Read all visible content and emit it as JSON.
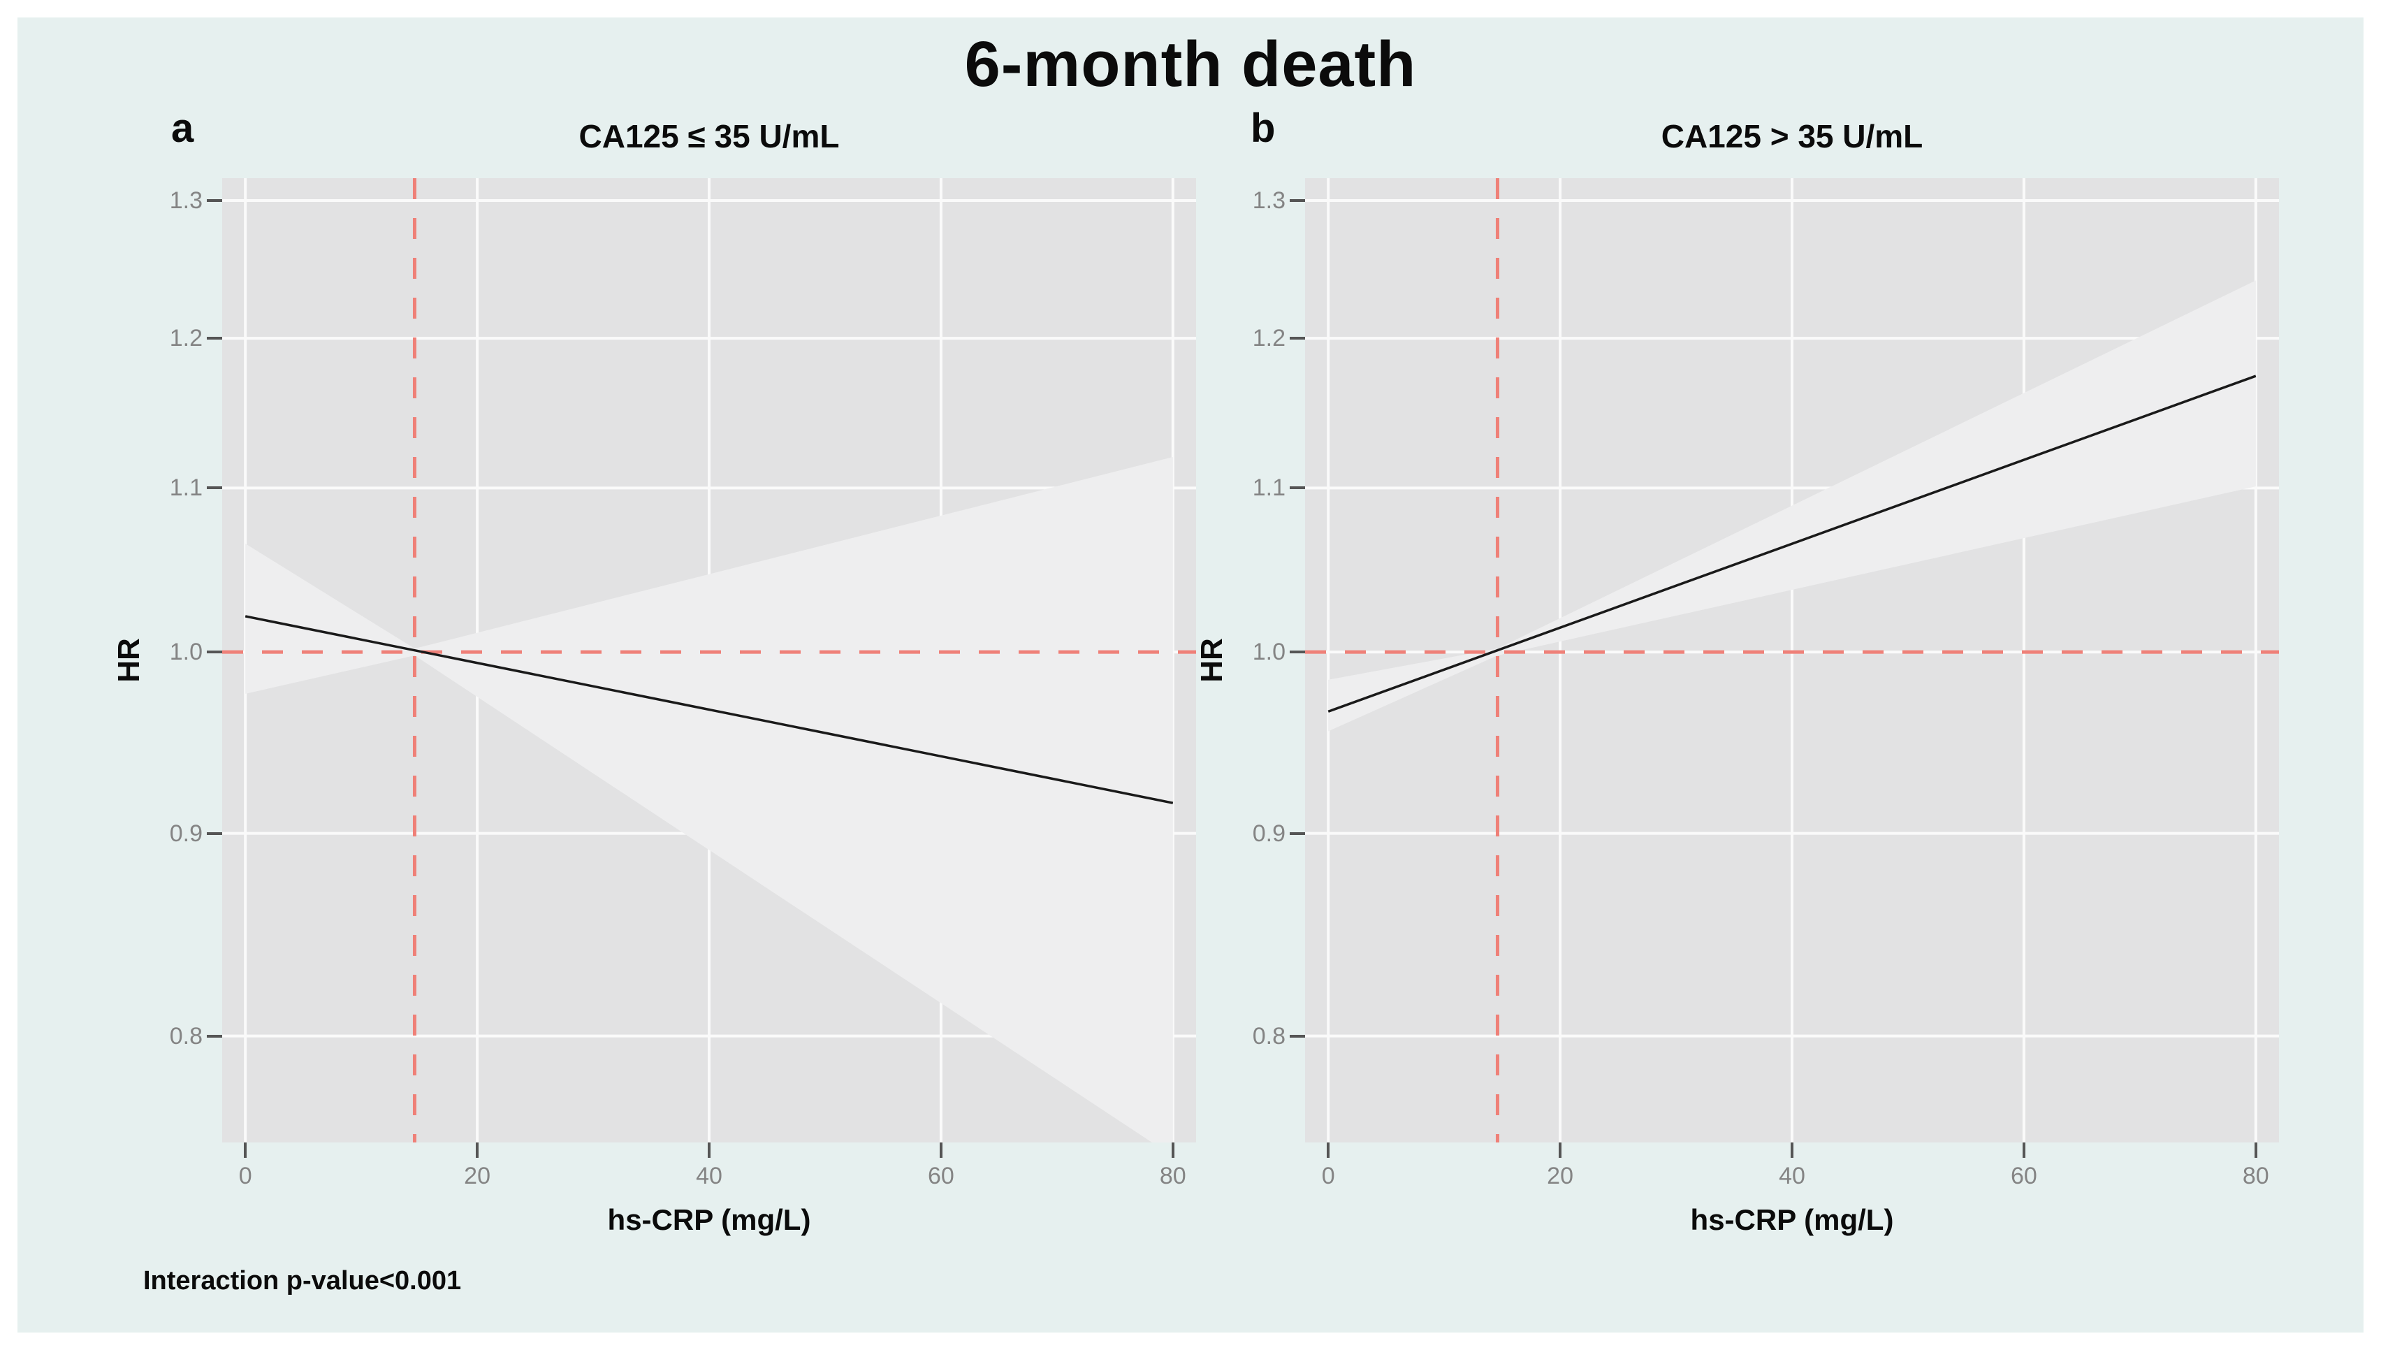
{
  "figure": {
    "title": "6-month death",
    "annotation": "Interaction p-value<0.001"
  },
  "colors": {
    "background": "#e6f0ef",
    "margin": "#ffffff",
    "panel_bg": "#e2e2e3",
    "band": "#eeeeef",
    "gridline": "#fafafa",
    "line": "#1a1a1a",
    "reference": "#ef8078",
    "tick_label": "#848484",
    "tick_mark": "#555555",
    "text": "#0b0b0b"
  },
  "chart_data": [
    {
      "type": "line",
      "panel_label": "a",
      "title": "CA125 ≤ 35 U/mL",
      "xlabel": "hs-CRP (mg/L)",
      "ylabel": "HR",
      "x_ticks": [
        0,
        20,
        40,
        60,
        80
      ],
      "x_tick_labels": [
        "0",
        "20",
        "40",
        "60",
        "80"
      ],
      "y_ticks": [
        1.3,
        1.2,
        1.1,
        1.0,
        0.9,
        0.8
      ],
      "y_tick_labels": [
        "1.3",
        "1.2",
        "1.1",
        "1.0",
        "0.9",
        "0.8"
      ],
      "xlim": [
        -2,
        82
      ],
      "ylim": [
        0.752,
        1.317
      ],
      "y_scale": "log",
      "grid": "major-only",
      "legend": "none",
      "ref_x": 14.6,
      "ref_y": 1.0,
      "line": {
        "x": [
          0,
          80
        ],
        "hr": [
          1.021,
          0.916
        ]
      },
      "band": {
        "x": [
          0,
          14.6,
          80
        ],
        "upper": [
          1.065,
          1.002,
          1.12
        ],
        "lower": [
          0.976,
          0.998,
          0.746
        ]
      }
    },
    {
      "type": "line",
      "panel_label": "b",
      "title": "CA125 > 35 U/mL",
      "xlabel": "hs-CRP (mg/L)",
      "ylabel": "HR",
      "x_ticks": [
        0,
        20,
        40,
        60,
        80
      ],
      "x_tick_labels": [
        "0",
        "20",
        "40",
        "60",
        "80"
      ],
      "y_ticks": [
        1.3,
        1.2,
        1.1,
        1.0,
        0.9,
        0.8
      ],
      "y_tick_labels": [
        "1.3",
        "1.2",
        "1.1",
        "1.0",
        "0.9",
        "0.8"
      ],
      "xlim": [
        -2,
        82
      ],
      "ylim": [
        0.752,
        1.317
      ],
      "y_scale": "log",
      "grid": "major-only",
      "legend": "none",
      "ref_x": 14.6,
      "ref_y": 1.0,
      "line": {
        "x": [
          0,
          80
        ],
        "hr": [
          0.966,
          1.174
        ]
      },
      "band": {
        "x": [
          0,
          14.6,
          80
        ],
        "upper": [
          0.984,
          1.002,
          1.241
        ],
        "lower": [
          0.955,
          0.998,
          1.101
        ]
      }
    }
  ]
}
